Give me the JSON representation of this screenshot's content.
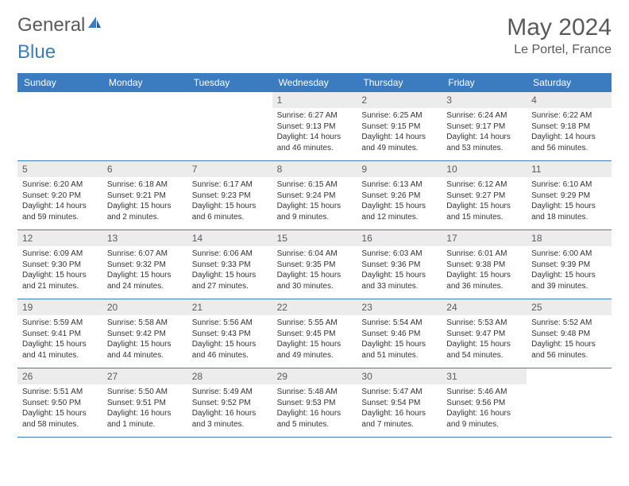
{
  "logo": {
    "text1": "General",
    "text2": "Blue",
    "color1": "#6b6b6b",
    "color2": "#3b7bbf"
  },
  "title": "May 2024",
  "location": "Le Portel, France",
  "header_bg": "#3b7bbf",
  "daynum_bg": "#ececec",
  "border_color": "#3b7bbf",
  "daynames": [
    "Sunday",
    "Monday",
    "Tuesday",
    "Wednesday",
    "Thursday",
    "Friday",
    "Saturday"
  ],
  "weeks": [
    [
      null,
      null,
      null,
      {
        "n": "1",
        "sr": "6:27 AM",
        "ss": "9:13 PM",
        "dl": "14 hours and 46 minutes."
      },
      {
        "n": "2",
        "sr": "6:25 AM",
        "ss": "9:15 PM",
        "dl": "14 hours and 49 minutes."
      },
      {
        "n": "3",
        "sr": "6:24 AM",
        "ss": "9:17 PM",
        "dl": "14 hours and 53 minutes."
      },
      {
        "n": "4",
        "sr": "6:22 AM",
        "ss": "9:18 PM",
        "dl": "14 hours and 56 minutes."
      }
    ],
    [
      {
        "n": "5",
        "sr": "6:20 AM",
        "ss": "9:20 PM",
        "dl": "14 hours and 59 minutes."
      },
      {
        "n": "6",
        "sr": "6:18 AM",
        "ss": "9:21 PM",
        "dl": "15 hours and 2 minutes."
      },
      {
        "n": "7",
        "sr": "6:17 AM",
        "ss": "9:23 PM",
        "dl": "15 hours and 6 minutes."
      },
      {
        "n": "8",
        "sr": "6:15 AM",
        "ss": "9:24 PM",
        "dl": "15 hours and 9 minutes."
      },
      {
        "n": "9",
        "sr": "6:13 AM",
        "ss": "9:26 PM",
        "dl": "15 hours and 12 minutes."
      },
      {
        "n": "10",
        "sr": "6:12 AM",
        "ss": "9:27 PM",
        "dl": "15 hours and 15 minutes."
      },
      {
        "n": "11",
        "sr": "6:10 AM",
        "ss": "9:29 PM",
        "dl": "15 hours and 18 minutes."
      }
    ],
    [
      {
        "n": "12",
        "sr": "6:09 AM",
        "ss": "9:30 PM",
        "dl": "15 hours and 21 minutes."
      },
      {
        "n": "13",
        "sr": "6:07 AM",
        "ss": "9:32 PM",
        "dl": "15 hours and 24 minutes."
      },
      {
        "n": "14",
        "sr": "6:06 AM",
        "ss": "9:33 PM",
        "dl": "15 hours and 27 minutes."
      },
      {
        "n": "15",
        "sr": "6:04 AM",
        "ss": "9:35 PM",
        "dl": "15 hours and 30 minutes."
      },
      {
        "n": "16",
        "sr": "6:03 AM",
        "ss": "9:36 PM",
        "dl": "15 hours and 33 minutes."
      },
      {
        "n": "17",
        "sr": "6:01 AM",
        "ss": "9:38 PM",
        "dl": "15 hours and 36 minutes."
      },
      {
        "n": "18",
        "sr": "6:00 AM",
        "ss": "9:39 PM",
        "dl": "15 hours and 39 minutes."
      }
    ],
    [
      {
        "n": "19",
        "sr": "5:59 AM",
        "ss": "9:41 PM",
        "dl": "15 hours and 41 minutes."
      },
      {
        "n": "20",
        "sr": "5:58 AM",
        "ss": "9:42 PM",
        "dl": "15 hours and 44 minutes."
      },
      {
        "n": "21",
        "sr": "5:56 AM",
        "ss": "9:43 PM",
        "dl": "15 hours and 46 minutes."
      },
      {
        "n": "22",
        "sr": "5:55 AM",
        "ss": "9:45 PM",
        "dl": "15 hours and 49 minutes."
      },
      {
        "n": "23",
        "sr": "5:54 AM",
        "ss": "9:46 PM",
        "dl": "15 hours and 51 minutes."
      },
      {
        "n": "24",
        "sr": "5:53 AM",
        "ss": "9:47 PM",
        "dl": "15 hours and 54 minutes."
      },
      {
        "n": "25",
        "sr": "5:52 AM",
        "ss": "9:48 PM",
        "dl": "15 hours and 56 minutes."
      }
    ],
    [
      {
        "n": "26",
        "sr": "5:51 AM",
        "ss": "9:50 PM",
        "dl": "15 hours and 58 minutes."
      },
      {
        "n": "27",
        "sr": "5:50 AM",
        "ss": "9:51 PM",
        "dl": "16 hours and 1 minute."
      },
      {
        "n": "28",
        "sr": "5:49 AM",
        "ss": "9:52 PM",
        "dl": "16 hours and 3 minutes."
      },
      {
        "n": "29",
        "sr": "5:48 AM",
        "ss": "9:53 PM",
        "dl": "16 hours and 5 minutes."
      },
      {
        "n": "30",
        "sr": "5:47 AM",
        "ss": "9:54 PM",
        "dl": "16 hours and 7 minutes."
      },
      {
        "n": "31",
        "sr": "5:46 AM",
        "ss": "9:56 PM",
        "dl": "16 hours and 9 minutes."
      },
      null
    ]
  ],
  "labels": {
    "sunrise": "Sunrise:",
    "sunset": "Sunset:",
    "daylight": "Daylight:"
  }
}
